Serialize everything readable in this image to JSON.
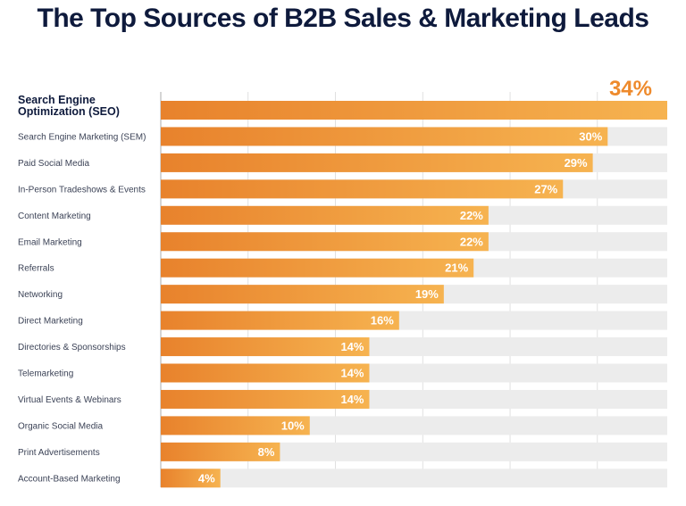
{
  "title": "The Top Sources of B2B Sales & Marketing Leads",
  "colors": {
    "bar_start": "#e8822c",
    "bar_end": "#f6b350",
    "track": "#ececec",
    "grid": "#d9d9d9",
    "highlight_label": "#ee8a2c"
  },
  "chart_data": {
    "type": "bar",
    "orientation": "horizontal",
    "title": "The Top Sources of B2B Sales & Marketing Leads",
    "xlim": [
      0,
      34
    ],
    "unit": "%",
    "highlight_index": 0,
    "categories": [
      "Search Engine Optimization (SEO)",
      "Search Engine Marketing (SEM)",
      "Paid Social Media",
      "In-Person Tradeshows & Events",
      "Content Marketing",
      "Email Marketing",
      "Referrals",
      "Networking",
      "Direct Marketing",
      "Directories & Sponsorships",
      "Telemarketing",
      "Virtual Events & Webinars",
      "Organic Social Media",
      "Print Advertisements",
      "Account-Based Marketing"
    ],
    "values": [
      34,
      30,
      29,
      27,
      22,
      22,
      21,
      19,
      16,
      14,
      14,
      14,
      10,
      8,
      4
    ],
    "value_labels": [
      "34%",
      "30%",
      "29%",
      "27%",
      "22%",
      "22%",
      "21%",
      "19%",
      "16%",
      "14%",
      "14%",
      "14%",
      "10%",
      "8%",
      "4%"
    ]
  }
}
